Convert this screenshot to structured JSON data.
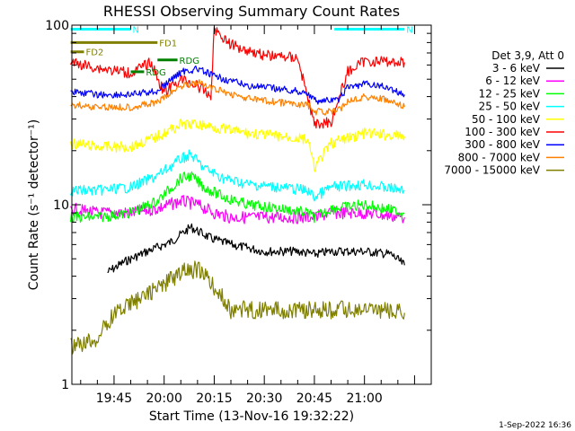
{
  "chart_data": {
    "type": "line",
    "title": "RHESSI Observing Summary Count Rates",
    "xlabel": "Start Time (13-Nov-16 19:32:22)",
    "ylabel": "Count Rate (s⁻¹ detector⁻¹)",
    "yscale": "log",
    "ylim": [
      1,
      100
    ],
    "y_ticks": [
      {
        "value": 1,
        "label": "1"
      },
      {
        "value": 10,
        "label": "10"
      },
      {
        "value": 100,
        "label": "100"
      }
    ],
    "xlim": [
      "19:32:22",
      "21:20:00"
    ],
    "x_ticks": [
      {
        "time": "19:45",
        "label": "19:45"
      },
      {
        "time": "20:00",
        "label": "20:00"
      },
      {
        "time": "20:15",
        "label": "20:15"
      },
      {
        "time": "20:30",
        "label": "20:30"
      },
      {
        "time": "20:45",
        "label": "20:45"
      },
      {
        "time": "21:00",
        "label": "21:00"
      }
    ],
    "grid": false,
    "legend_position": "right",
    "legend_header": "Det 3,9, Att 0",
    "series": [
      {
        "name": "3 - 6 keV",
        "color": "#000000",
        "x": [
          "19:43",
          "19:48",
          "19:55",
          "20:02",
          "20:08",
          "20:14",
          "20:20",
          "20:30",
          "20:40",
          "20:45",
          "20:50",
          "21:00",
          "21:08",
          "21:12"
        ],
        "y": [
          4.2,
          4.8,
          5.5,
          6.2,
          7.5,
          6.5,
          6.0,
          5.5,
          5.5,
          5.3,
          5.5,
          5.5,
          5.3,
          4.6
        ]
      },
      {
        "name": "6 - 12 keV",
        "color": "#ff00ff",
        "x": [
          "19:32",
          "19:40",
          "19:50",
          "19:58",
          "20:05",
          "20:10",
          "20:15",
          "20:20",
          "20:30",
          "20:40",
          "20:45",
          "20:50",
          "21:00",
          "21:12"
        ],
        "y": [
          9.5,
          9.0,
          9.0,
          9.5,
          10.5,
          10.0,
          9.0,
          8.5,
          8.5,
          8.5,
          8.5,
          9.0,
          9.0,
          8.5
        ]
      },
      {
        "name": "12 - 25 keV",
        "color": "#00ff00",
        "x": [
          "19:32",
          "19:40",
          "19:50",
          "19:58",
          "20:05",
          "20:08",
          "20:12",
          "20:18",
          "20:25",
          "20:35",
          "20:43",
          "20:45",
          "20:50",
          "21:00",
          "21:12"
        ],
        "y": [
          8.5,
          8.5,
          9.0,
          10.5,
          14.0,
          14.5,
          12.5,
          11.0,
          10.0,
          9.5,
          9.0,
          8.5,
          9.5,
          10.0,
          9.0
        ]
      },
      {
        "name": "25 - 50 keV",
        "color": "#00ffff",
        "x": [
          "19:32",
          "19:40",
          "19:50",
          "19:58",
          "20:05",
          "20:08",
          "20:12",
          "20:18",
          "20:25",
          "20:35",
          "20:43",
          "20:45",
          "20:50",
          "21:00",
          "21:12"
        ],
        "y": [
          12.0,
          12.0,
          12.5,
          14.5,
          18.0,
          19.0,
          16.0,
          14.0,
          13.0,
          12.5,
          12.0,
          11.0,
          12.5,
          13.0,
          12.0
        ]
      },
      {
        "name": "50 - 100 keV",
        "color": "#ffff00",
        "x": [
          "19:32",
          "19:40",
          "19:50",
          "19:58",
          "20:05",
          "20:10",
          "20:15",
          "20:25",
          "20:35",
          "20:43",
          "20:45",
          "20:50",
          "21:00",
          "21:12"
        ],
        "y": [
          22.0,
          21.0,
          21.0,
          24.0,
          28.0,
          28.0,
          27.0,
          25.0,
          24.0,
          23.0,
          16.0,
          22.0,
          25.0,
          24.0
        ]
      },
      {
        "name": "100 - 300 keV",
        "color": "#ff0000",
        "x": [
          "19:32",
          "19:40",
          "19:50",
          "19:56",
          "20:00",
          "20:05",
          "20:10",
          "20:14",
          "20:15",
          "20:20",
          "20:30",
          "20:40",
          "20:45",
          "20:50",
          "20:55",
          "21:00",
          "21:05",
          "21:12"
        ],
        "y": [
          62.0,
          58.0,
          54.0,
          62.0,
          42.0,
          50.0,
          46.0,
          40.0,
          95.0,
          78.0,
          68.0,
          66.0,
          28.0,
          29.0,
          55.0,
          63.0,
          63.0,
          62.0
        ]
      },
      {
        "name": "300 - 800 keV",
        "color": "#0000ff",
        "x": [
          "19:32",
          "19:40",
          "19:50",
          "19:58",
          "20:05",
          "20:10",
          "20:15",
          "20:25",
          "20:35",
          "20:43",
          "20:45",
          "20:52",
          "20:55",
          "21:00",
          "21:05",
          "21:12"
        ],
        "y": [
          43.0,
          41.0,
          41.0,
          43.0,
          55.0,
          57.0,
          52.0,
          46.0,
          44.0,
          42.0,
          38.0,
          38.0,
          45.0,
          47.0,
          46.0,
          41.0
        ]
      },
      {
        "name": "800 - 7000 keV",
        "color": "#ff8000",
        "x": [
          "19:32",
          "19:40",
          "19:50",
          "19:58",
          "20:05",
          "20:10",
          "20:15",
          "20:25",
          "20:35",
          "20:43",
          "20:45",
          "20:52",
          "20:55",
          "21:00",
          "21:05",
          "21:12"
        ],
        "y": [
          36.0,
          35.0,
          35.0,
          37.0,
          46.0,
          48.0,
          44.0,
          39.0,
          37.0,
          36.0,
          33.0,
          33.0,
          38.0,
          40.0,
          39.0,
          35.0
        ]
      },
      {
        "name": "7000 - 15000 keV",
        "color": "#808000",
        "x": [
          "19:32",
          "19:40",
          "19:45",
          "19:50",
          "19:55",
          "20:00",
          "20:05",
          "20:10",
          "20:15",
          "20:20",
          "20:30",
          "20:40",
          "20:45",
          "20:50",
          "21:00",
          "21:12"
        ],
        "y": [
          1.6,
          1.8,
          2.5,
          2.8,
          3.2,
          3.6,
          4.2,
          4.4,
          3.5,
          2.6,
          2.6,
          2.6,
          2.6,
          2.6,
          2.6,
          2.5
        ]
      }
    ],
    "annotations": [
      {
        "label": "N",
        "color": "#00ffff",
        "start": "19:32",
        "end": "19:50",
        "y": 95
      },
      {
        "label": "N",
        "color": "#00ffff",
        "start": "20:51",
        "end": "21:12",
        "y": 95
      },
      {
        "label": "FD1",
        "color": "#808000",
        "start": "19:32",
        "end": "19:58",
        "y": 80
      },
      {
        "label": "FD2",
        "color": "#808000",
        "start": "19:32",
        "end": "19:36",
        "y": 71
      },
      {
        "label": "RDG",
        "color": "#008000",
        "start": "19:58",
        "end": "20:04",
        "y": 64
      },
      {
        "label": "RDG",
        "color": "#008000",
        "start": "19:50",
        "end": "19:54",
        "y": 55
      }
    ],
    "footer_date": "1-Sep-2022 16:36"
  }
}
